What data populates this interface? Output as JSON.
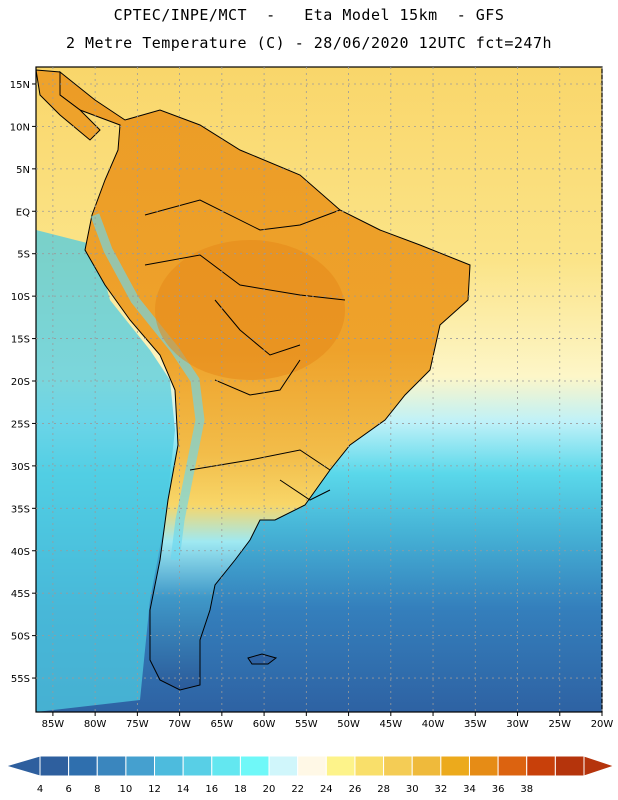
{
  "title_line1": "CPTEC/INPE/MCT  -   Eta Model 15km  - GFS",
  "title_line2": "2 Metre Temperature (C) - 28/06/2020 12UTC fct=247h",
  "lat_labels": [
    "15N",
    "10N",
    "5N",
    "EQ",
    "5S",
    "10S",
    "15S",
    "20S",
    "25S",
    "30S",
    "35S",
    "40S",
    "45S",
    "50S",
    "55S"
  ],
  "lat_values": [
    15,
    10,
    5,
    0,
    -5,
    -10,
    -15,
    -20,
    -25,
    -30,
    -35,
    -40,
    -45,
    -50,
    -55
  ],
  "lon_labels": [
    "85W",
    "80W",
    "75W",
    "70W",
    "65W",
    "60W",
    "55W",
    "50W",
    "45W",
    "40W",
    "35W",
    "30W",
    "25W",
    "20W"
  ],
  "lon_values": [
    -85,
    -80,
    -75,
    -70,
    -65,
    -60,
    -55,
    -50,
    -45,
    -40,
    -35,
    -30,
    -25,
    -20
  ],
  "colorbar": {
    "labels": [
      "4",
      "6",
      "8",
      "10",
      "12",
      "14",
      "16",
      "18",
      "20",
      "22",
      "24",
      "26",
      "28",
      "30",
      "32",
      "34",
      "36",
      "38"
    ],
    "colors": [
      "#2e5f9e",
      "#2f6fae",
      "#3a86be",
      "#45a0cf",
      "#4dbbdd",
      "#58cfe6",
      "#63e7f0",
      "#6ff8f8",
      "#d0f6fb",
      "#fff8e6",
      "#fdf38a",
      "#f9df6a",
      "#f4cc55",
      "#efba3b",
      "#ecaa1c",
      "#e68c16",
      "#dc6310",
      "#c8400a",
      "#b5340c"
    ],
    "left_arrow_color": "#2e5f9e",
    "right_arrow_color": "#b5340c"
  },
  "colors": {
    "land_warm": "#f0b23a",
    "land_hot": "#e8921e",
    "ocean_warm": "#fbe07a",
    "ocean_cool": "#4fc8e0",
    "ocean_cold": "#2e6aaa"
  }
}
